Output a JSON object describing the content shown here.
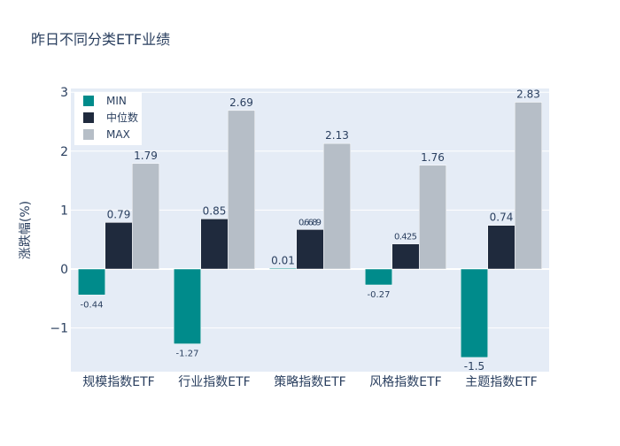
{
  "chart_data": {
    "type": "bar",
    "title": "昨日不同分类ETF业绩",
    "xlabel": "",
    "ylabel": "涨跌幅(%)",
    "ylim": [
      -1.75,
      3.0
    ],
    "yticks": [
      -1,
      0,
      1,
      2,
      3
    ],
    "ytick_labels": [
      "−1",
      "0",
      "1",
      "2",
      "3"
    ],
    "grid": true,
    "legend_position": "top-left",
    "categories": [
      "规模指数ETF",
      "行业指数ETF",
      "策略指数ETF",
      "风格指数ETF",
      "主题指数ETF"
    ],
    "series": [
      {
        "name": "MIN",
        "color": "#008b8b",
        "values": [
          -0.44,
          -1.27,
          0.01,
          -0.27,
          -1.5
        ],
        "labels": [
          "-0.44",
          "-1.27",
          "0.01",
          "-0.27",
          "-1.5"
        ]
      },
      {
        "name": "中位数",
        "color": "#1f2a3d",
        "values": [
          0.79,
          0.85,
          0.67,
          0.425,
          0.74
        ],
        "labels": [
          "0.79",
          "0.85",
          "0.6689",
          "0.425",
          "0.74"
        ]
      },
      {
        "name": "MAX",
        "color": "#b6bec7",
        "values": [
          1.79,
          2.69,
          2.13,
          1.76,
          2.83
        ],
        "labels": [
          "1.79",
          "2.69",
          "2.13",
          "1.76",
          "2.83"
        ]
      }
    ]
  }
}
